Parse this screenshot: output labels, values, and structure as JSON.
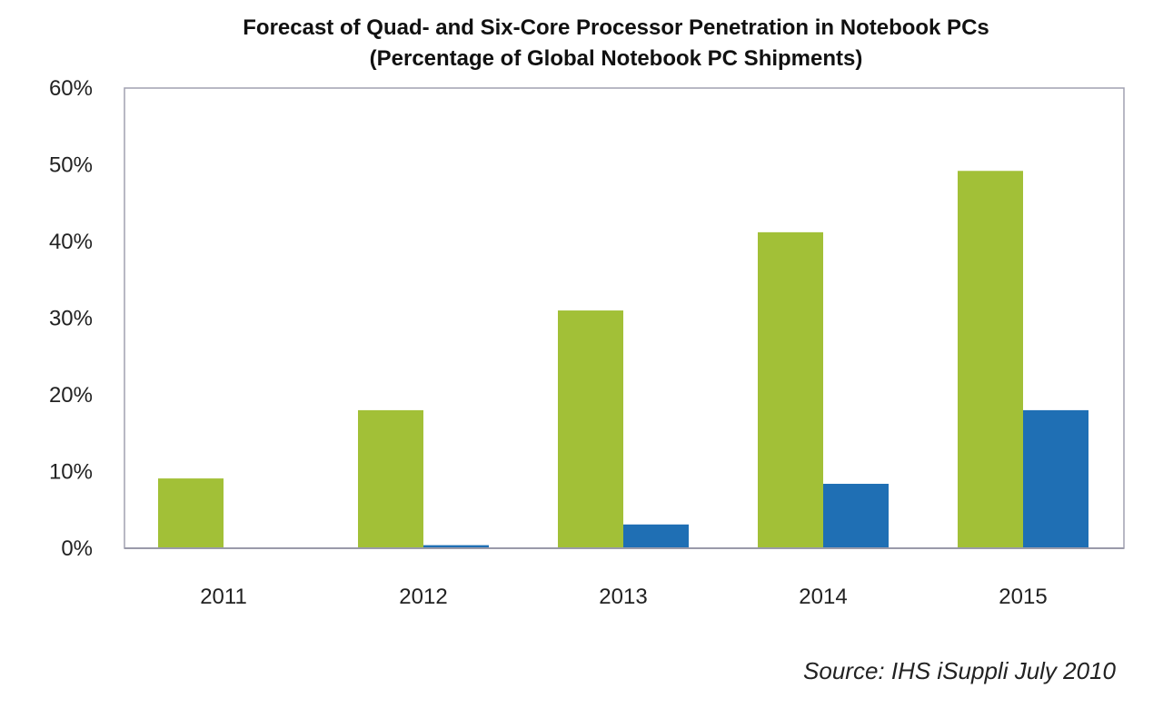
{
  "chart_data": {
    "type": "bar",
    "title": "Forecast of Quad- and Six-Core Processor Penetration in Notebook PCs",
    "subtitle": "(Percentage of Global Notebook PC Shipments)",
    "categories": [
      "2011",
      "2012",
      "2013",
      "2014",
      "2015"
    ],
    "series": [
      {
        "values": [
          9.1,
          18,
          31,
          41.2,
          49.2
        ],
        "color": "#a2c037"
      },
      {
        "values": [
          0,
          0.4,
          3.1,
          8.4,
          18
        ],
        "color": "#1f6fb4"
      }
    ],
    "ylim": [
      0,
      60
    ],
    "yticks": [
      0,
      10,
      20,
      30,
      40,
      50,
      60
    ],
    "ytick_labels": [
      "0%",
      "10%",
      "20%",
      "30%",
      "40%",
      "50%",
      "60%"
    ],
    "grid": false,
    "legend": "none",
    "source": "Source: IHS iSuppli July 2010"
  }
}
